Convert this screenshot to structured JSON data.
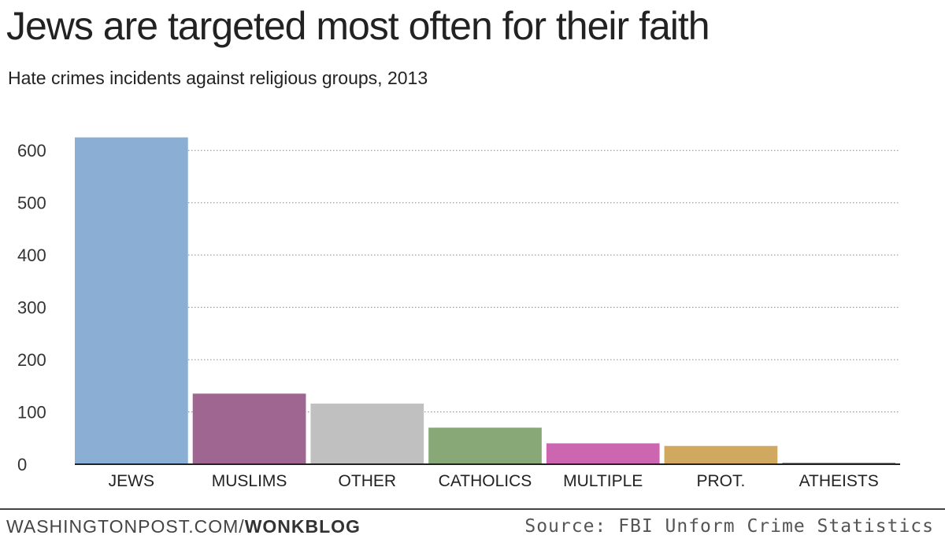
{
  "title": "Jews are targeted most often for their faith",
  "subtitle": "Hate crimes incidents against religious groups, 2013",
  "chart_data": {
    "type": "bar",
    "title": "Jews are targeted most often for their faith",
    "subtitle": "Hate crimes incidents against religious groups, 2013",
    "xlabel": "",
    "ylabel": "",
    "categories": [
      "JEWS",
      "MUSLIMS",
      "OTHER",
      "CATHOLICS",
      "MULTIPLE",
      "PROT.",
      "ATHEISTS"
    ],
    "values": [
      625,
      135,
      116,
      70,
      40,
      35,
      3
    ],
    "colors": [
      "#8aaed4",
      "#9e6690",
      "#c0c0c0",
      "#88a878",
      "#cc66b0",
      "#d0a860",
      "#888888"
    ],
    "ylim": [
      0,
      650
    ],
    "yticks": [
      0,
      100,
      200,
      300,
      400,
      500,
      600
    ],
    "grid": true,
    "legend": "none"
  },
  "footer": {
    "source_left": "WASHINGTONPOST.COM/",
    "source_brand": "WONKBLOG",
    "credit": "Source: FBI Unform Crime Statistics"
  }
}
